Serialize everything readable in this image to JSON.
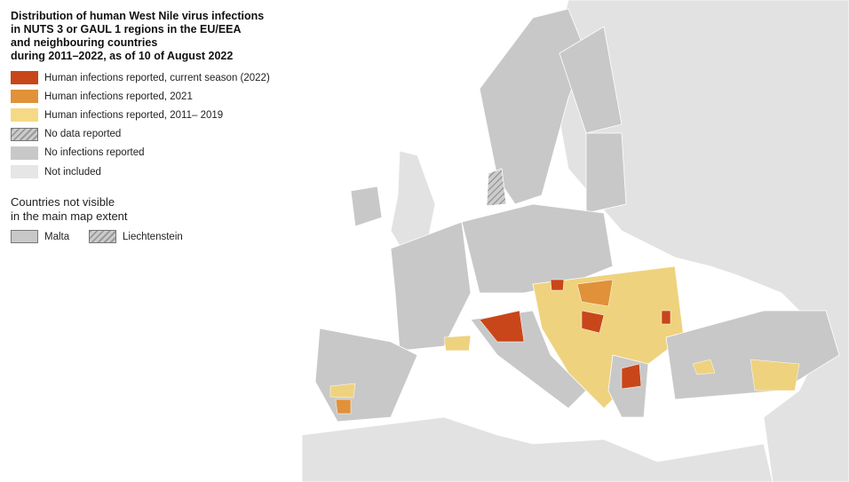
{
  "header": {
    "title_lines": [
      "Distribution of human West Nile virus infections",
      "in NUTS 3 or GAUL 1 regions in the EU/EEA",
      "and neighbouring countries",
      "during 2011–2022, as of 10 of August 2022"
    ]
  },
  "legend": {
    "items": [
      "Human infections reported, current season (2022)",
      "Human infections reported, 2021",
      "Human infections reported, 2011– 2019",
      "No data reported",
      "No infections reported",
      "Not included"
    ]
  },
  "inset_note": {
    "lines": [
      "Countries not visible",
      "in the main map extent"
    ],
    "countries": [
      "Malta",
      "Liechtenstein"
    ]
  }
}
